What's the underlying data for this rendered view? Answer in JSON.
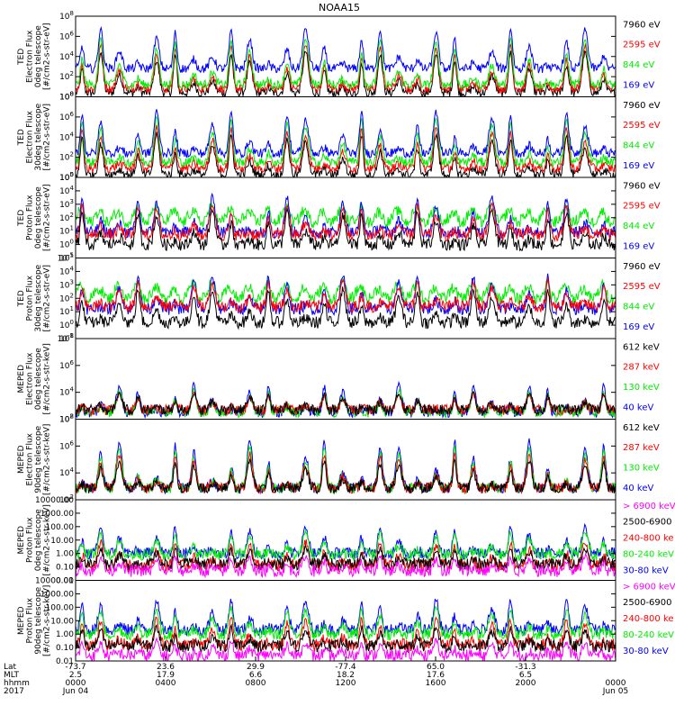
{
  "title": "NOAA15",
  "colors": {
    "black": "#000000",
    "red": "#ff0000",
    "green": "#00ee00",
    "blue": "#0000ff",
    "magenta": "#ff00ff",
    "axis": "#000000"
  },
  "chart_data": [
    {
      "type": "line",
      "ylabel_lines": [
        "TED",
        "Electron Flux",
        "0deg telescope",
        "[#/cm2-s-str-eV]"
      ],
      "log": true,
      "ylim_exp": [
        0,
        8
      ],
      "yticks": [
        "10^0",
        "10^2",
        "10^4",
        "10^6",
        "10^8"
      ],
      "legend": [
        {
          "text": "7960 eV",
          "color": "black"
        },
        {
          "text": "2595 eV",
          "color": "red"
        },
        {
          "text": "844 eV",
          "color": "green"
        },
        {
          "text": "169 eV",
          "color": "blue"
        }
      ],
      "series": [
        {
          "name": "7960 eV",
          "color": "black",
          "base": 0.4,
          "peak": 4.5
        },
        {
          "name": "2595 eV",
          "color": "red",
          "base": 0.8,
          "peak": 5.2
        },
        {
          "name": "844 eV",
          "color": "green",
          "base": 1.2,
          "peak": 5.8
        },
        {
          "name": "169 eV",
          "color": "blue",
          "base": 2.8,
          "peak": 6.8
        }
      ]
    },
    {
      "type": "line",
      "ylabel_lines": [
        "TED",
        "Electron Flux",
        "30deg telescope",
        "[#/cm2-s-str-eV]"
      ],
      "log": true,
      "ylim_exp": [
        0,
        8
      ],
      "yticks": [
        "10^0",
        "10^2",
        "10^4",
        "10^6",
        "10^8"
      ],
      "legend": [
        {
          "text": "7960 eV",
          "color": "black"
        },
        {
          "text": "2595 eV",
          "color": "red"
        },
        {
          "text": "844 eV",
          "color": "green"
        },
        {
          "text": "169 eV",
          "color": "blue"
        }
      ],
      "series": [
        {
          "name": "7960 eV",
          "color": "black",
          "base": 0.3,
          "peak": 4.3
        },
        {
          "name": "2595 eV",
          "color": "red",
          "base": 0.9,
          "peak": 5.0
        },
        {
          "name": "844 eV",
          "color": "green",
          "base": 1.5,
          "peak": 5.9
        },
        {
          "name": "169 eV",
          "color": "blue",
          "base": 2.4,
          "peak": 6.6
        }
      ]
    },
    {
      "type": "line",
      "ylabel_lines": [
        "TED",
        "Proton Flux",
        "0deg telescope",
        "[#/cm2-s-str-eV]"
      ],
      "log": true,
      "ylim_exp": [
        -1,
        5
      ],
      "yticks": [
        "10^-1",
        "10^0",
        "10^1",
        "10^2",
        "10^3",
        "10^4",
        "10^5"
      ],
      "legend": [
        {
          "text": "7960 eV",
          "color": "black"
        },
        {
          "text": "2595 eV",
          "color": "red"
        },
        {
          "text": "844 eV",
          "color": "green"
        },
        {
          "text": "169 eV",
          "color": "blue"
        }
      ],
      "series": [
        {
          "name": "844 eV",
          "color": "green",
          "base": 2.0,
          "peak": 2.6
        },
        {
          "name": "169 eV",
          "color": "blue",
          "base": 0.9,
          "peak": 3.6
        },
        {
          "name": "2595 eV",
          "color": "red",
          "base": 0.7,
          "peak": 3.0
        },
        {
          "name": "7960 eV",
          "color": "black",
          "base": 0.0,
          "peak": 2.6
        }
      ]
    },
    {
      "type": "line",
      "ylabel_lines": [
        "TED",
        "Proton Flux",
        "30deg telescope",
        "[#/cm2-s-str-eV]"
      ],
      "log": true,
      "ylim_exp": [
        -1,
        5
      ],
      "yticks": [
        "10^-1",
        "10^0",
        "10^1",
        "10^2",
        "10^3",
        "10^4",
        "10^5"
      ],
      "legend": [
        {
          "text": "7960 eV",
          "color": "black"
        },
        {
          "text": "2595 eV",
          "color": "red"
        },
        {
          "text": "844 eV",
          "color": "green"
        },
        {
          "text": "169 eV",
          "color": "blue"
        }
      ],
      "series": [
        {
          "name": "844 eV",
          "color": "green",
          "base": 2.3,
          "peak": 3.0
        },
        {
          "name": "169 eV",
          "color": "blue",
          "base": 1.2,
          "peak": 3.8
        },
        {
          "name": "2595 eV",
          "color": "red",
          "base": 1.4,
          "peak": 3.3
        },
        {
          "name": "7960 eV",
          "color": "black",
          "base": 0.2,
          "peak": 2.7
        }
      ]
    },
    {
      "type": "line",
      "ylabel_lines": [
        "MEPED",
        "Electron Flux",
        "0deg telescope",
        "[#/cm2-s-str-keV]"
      ],
      "log": true,
      "ylim_exp": [
        1,
        8
      ],
      "yticks": [
        "10^2",
        "10^4",
        "10^6",
        "10^8"
      ],
      "legend": [
        {
          "text": "612 keV",
          "color": "black"
        },
        {
          "text": "287 keV",
          "color": "red"
        },
        {
          "text": "130 keV",
          "color": "green"
        },
        {
          "text": "40 keV",
          "color": "blue"
        }
      ],
      "series": [
        {
          "name": "40 keV",
          "color": "blue",
          "base": 1.6,
          "peak": 4.0
        },
        {
          "name": "130 keV",
          "color": "green",
          "base": 1.6,
          "peak": 3.5
        },
        {
          "name": "287 keV",
          "color": "red",
          "base": 1.8,
          "peak": 3.2
        },
        {
          "name": "612 keV",
          "color": "black",
          "base": 1.8,
          "peak": 3.3
        }
      ]
    },
    {
      "type": "line",
      "ylabel_lines": [
        "MEPED",
        "Electron Flux",
        "90deg telescope",
        "[#/cm2-s-str-keV]"
      ],
      "log": true,
      "ylim_exp": [
        1,
        8
      ],
      "yticks": [
        "10^2",
        "10^4",
        "10^6",
        "10^8"
      ],
      "legend": [
        {
          "text": "612 keV",
          "color": "black"
        },
        {
          "text": "287 keV",
          "color": "red"
        },
        {
          "text": "130 keV",
          "color": "green"
        },
        {
          "text": "40 keV",
          "color": "blue"
        }
      ],
      "series": [
        {
          "name": "40 keV",
          "color": "blue",
          "base": 2.0,
          "peak": 6.2
        },
        {
          "name": "130 keV",
          "color": "green",
          "base": 2.0,
          "peak": 5.6
        },
        {
          "name": "287 keV",
          "color": "red",
          "base": 2.0,
          "peak": 5.0
        },
        {
          "name": "612 keV",
          "color": "black",
          "base": 2.0,
          "peak": 4.4
        }
      ]
    },
    {
      "type": "line",
      "ylabel_lines": [
        "MEPED",
        "Proton Flux",
        "0deg telescope",
        "[#/cm2-s-str-keV]"
      ],
      "log": true,
      "ylim_exp": [
        -2,
        4
      ],
      "yticks": [
        "0.01",
        "0.10",
        "1.00",
        "10.00",
        "100.00",
        "1000.00",
        "10000.00"
      ],
      "legend": [
        {
          "text": "> 6900 keV",
          "color": "magenta"
        },
        {
          "text": "2500-6900",
          "color": "black"
        },
        {
          "text": "240-800 ke",
          "color": "red"
        },
        {
          "text": "80-240 keV",
          "color": "green"
        },
        {
          "text": "30-80 keV",
          "color": "blue"
        }
      ],
      "series": [
        {
          "name": "30-80 keV",
          "color": "blue",
          "base": 0.0,
          "peak": 2.0
        },
        {
          "name": "80-240 keV",
          "color": "green",
          "base": -0.1,
          "peak": 1.6
        },
        {
          "name": "240-800 ke",
          "color": "red",
          "base": -0.9,
          "peak": 0.9
        },
        {
          "name": "2500-6900",
          "color": "black",
          "base": -0.8,
          "peak": 0.4
        },
        {
          "name": "> 6900 keV",
          "color": "magenta",
          "base": -1.3,
          "peak": -0.2
        }
      ]
    },
    {
      "type": "line",
      "ylabel_lines": [
        "MEPED",
        "Proton Flux",
        "90deg telescope",
        "[#/cm2-s-str-keV]"
      ],
      "log": true,
      "ylim_exp": [
        -2,
        4
      ],
      "yticks": [
        "0.01",
        "0.10",
        "1.00",
        "10.00",
        "100.00",
        "1000.00",
        "10000.00"
      ],
      "legend": [
        {
          "text": "> 6900 keV",
          "color": "magenta"
        },
        {
          "text": "2500-6900",
          "color": "black"
        },
        {
          "text": "240-800 ke",
          "color": "red"
        },
        {
          "text": "80-240 keV",
          "color": "green"
        },
        {
          "text": "30-80 keV",
          "color": "blue"
        }
      ],
      "series": [
        {
          "name": "30-80 keV",
          "color": "blue",
          "base": 0.3,
          "peak": 2.6
        },
        {
          "name": "80-240 keV",
          "color": "green",
          "base": 0.0,
          "peak": 2.0
        },
        {
          "name": "240-800 ke",
          "color": "red",
          "base": -0.8,
          "peak": 1.2
        },
        {
          "name": "2500-6900",
          "color": "black",
          "base": -0.9,
          "peak": 0.5
        },
        {
          "name": "> 6900 keV",
          "color": "magenta",
          "base": -1.6,
          "peak": -0.5
        }
      ]
    }
  ],
  "x_axis": {
    "row_labels": [
      "Lat",
      "MLT",
      "hhmm",
      "2017"
    ],
    "ticks": [
      {
        "lat": "-73.7",
        "mlt": "2.5",
        "hhmm": "0000",
        "date": "Jun 04"
      },
      {
        "lat": "23.6",
        "mlt": "17.9",
        "hhmm": "0400",
        "date": ""
      },
      {
        "lat": "29.9",
        "mlt": "6.6",
        "hhmm": "0800",
        "date": ""
      },
      {
        "lat": "-77.4",
        "mlt": "18.2",
        "hhmm": "1200",
        "date": ""
      },
      {
        "lat": "65.0",
        "mlt": "17.6",
        "hhmm": "1600",
        "date": ""
      },
      {
        "lat": "-31.3",
        "mlt": "6.5",
        "hhmm": "2000",
        "date": ""
      },
      {
        "lat": "",
        "mlt": "",
        "hhmm": "0000",
        "date": "Jun 05"
      }
    ]
  }
}
